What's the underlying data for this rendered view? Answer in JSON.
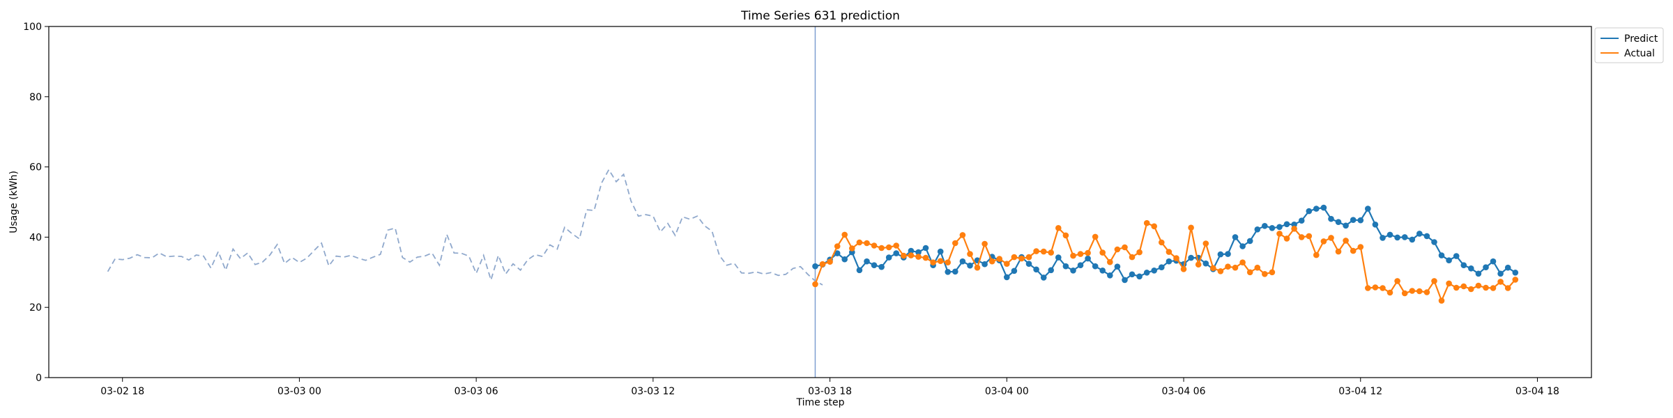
{
  "chart_data": {
    "type": "line",
    "title": "Time Series 631 prediction",
    "xlabel": "Time step",
    "ylabel": "Usage (kWh)",
    "ylim": [
      0,
      100
    ],
    "yticks": [
      "0",
      "20",
      "40",
      "60",
      "80",
      "100"
    ],
    "xlim": [
      "2024-03-02 15:30",
      "2024-03-04 19:50"
    ],
    "xticks": [
      {
        "t": "2024-03-02 18:00",
        "label": "03-02 18"
      },
      {
        "t": "2024-03-03 00:00",
        "label": "03-03 00"
      },
      {
        "t": "2024-03-03 06:00",
        "label": "03-03 06"
      },
      {
        "t": "2024-03-03 12:00",
        "label": "03-03 12"
      },
      {
        "t": "2024-03-03 18:00",
        "label": "03-03 18"
      },
      {
        "t": "2024-03-04 00:00",
        "label": "03-04 00"
      },
      {
        "t": "2024-03-04 06:00",
        "label": "03-04 06"
      },
      {
        "t": "2024-03-04 12:00",
        "label": "03-04 12"
      },
      {
        "t": "2024-03-04 18:00",
        "label": "03-04 18"
      }
    ],
    "forecast_start": "2024-03-03 17:30",
    "legend_placement": "top-right outside",
    "grid": false,
    "history": {
      "start": "2024-03-02 17:30",
      "step_minutes": 15,
      "color": "#8fa8cc",
      "values": [
        30.2,
        33.8,
        33.6,
        34.0,
        35.0,
        34.2,
        34.1,
        35.5,
        34.4,
        34.6,
        34.5,
        33.5,
        34.9,
        34.6,
        31.2,
        35.9,
        30.6,
        36.6,
        33.9,
        35.5,
        32.2,
        32.9,
        34.9,
        37.9,
        32.5,
        34.2,
        32.8,
        34.0,
        36.2,
        38.3,
        31.8,
        34.6,
        34.3,
        34.8,
        34.0,
        33.4,
        34.3,
        35.1,
        42.0,
        42.6,
        34.2,
        32.9,
        34.3,
        34.6,
        35.5,
        32.0,
        40.8,
        35.5,
        35.4,
        34.6,
        29.7,
        34.8,
        27.8,
        34.8,
        29.5,
        32.4,
        30.6,
        33.6,
        35.0,
        34.5,
        37.8,
        36.6,
        42.8,
        41.0,
        39.5,
        47.8,
        47.6,
        55.4,
        59.2,
        55.8,
        57.9,
        50.3,
        46.0,
        46.4,
        46.0,
        41.5,
        43.9,
        40.5,
        45.8,
        45.1,
        46.0,
        43.2,
        41.7,
        34.8,
        32.0,
        32.6,
        29.8,
        29.7,
        30.1,
        29.5,
        29.9,
        29.1,
        29.4,
        31.1,
        31.6,
        29.4,
        27.5,
        26.4
      ]
    },
    "series": [
      {
        "name": "Predict",
        "color": "#1f77b4",
        "start": "2024-03-03 17:30",
        "step_minutes": 15,
        "values": [
          31.7,
          32.2,
          33.6,
          35.4,
          33.7,
          35.7,
          30.6,
          33.1,
          32.0,
          31.5,
          34.2,
          35.4,
          34.2,
          36.1,
          35.7,
          36.9,
          32.0,
          35.9,
          30.1,
          30.2,
          33.1,
          31.9,
          33.4,
          32.3,
          34.4,
          33.4,
          28.6,
          30.4,
          34.3,
          32.4,
          30.8,
          28.5,
          30.6,
          34.2,
          31.7,
          30.5,
          32.0,
          33.9,
          31.7,
          30.5,
          29.1,
          31.6,
          27.8,
          29.4,
          28.8,
          29.9,
          30.5,
          31.4,
          33.1,
          33.3,
          32.3,
          34.1,
          34.1,
          32.5,
          30.9,
          35.1,
          35.2,
          40.0,
          37.4,
          38.9,
          42.2,
          43.2,
          42.6,
          42.9,
          43.7,
          43.6,
          44.7,
          47.4,
          48.1,
          48.4,
          45.2,
          44.3,
          43.3,
          44.9,
          44.8,
          48.1,
          43.6,
          39.8,
          40.7,
          39.9,
          40.0,
          39.3,
          41.0,
          40.3,
          38.6,
          34.8,
          33.4,
          34.6,
          32.0,
          31.1,
          29.6,
          31.4,
          33.1,
          29.6,
          31.3,
          29.9
        ]
      },
      {
        "name": "Actual",
        "color": "#ff7f0e",
        "start": "2024-03-03 17:30",
        "step_minutes": 15,
        "values": [
          26.6,
          32.3,
          33.0,
          37.4,
          40.7,
          36.8,
          38.5,
          38.3,
          37.6,
          36.9,
          37.1,
          37.6,
          34.7,
          34.8,
          34.4,
          34.1,
          32.8,
          33.2,
          32.8,
          38.3,
          40.6,
          35.2,
          31.3,
          38.1,
          33.1,
          33.8,
          32.4,
          34.3,
          33.9,
          34.3,
          36.0,
          35.9,
          35.6,
          42.6,
          40.5,
          34.7,
          35.2,
          35.5,
          40.1,
          35.6,
          32.9,
          36.5,
          37.1,
          34.3,
          35.7,
          44.0,
          43.1,
          38.5,
          35.8,
          34.0,
          30.9,
          42.7,
          32.2,
          38.2,
          31.2,
          30.3,
          31.6,
          31.3,
          32.8,
          30.0,
          31.3,
          29.5,
          30.0,
          41.0,
          39.6,
          42.4,
          40.0,
          40.3,
          34.9,
          38.8,
          39.8,
          35.9,
          39.0,
          36.1,
          37.2,
          25.5,
          25.7,
          25.5,
          24.2,
          27.5,
          24.0,
          24.7,
          24.6,
          24.3,
          27.5,
          21.9,
          26.8,
          25.6,
          26.0,
          25.2,
          26.2,
          25.6,
          25.5,
          27.3,
          25.5,
          27.9
        ]
      }
    ]
  }
}
